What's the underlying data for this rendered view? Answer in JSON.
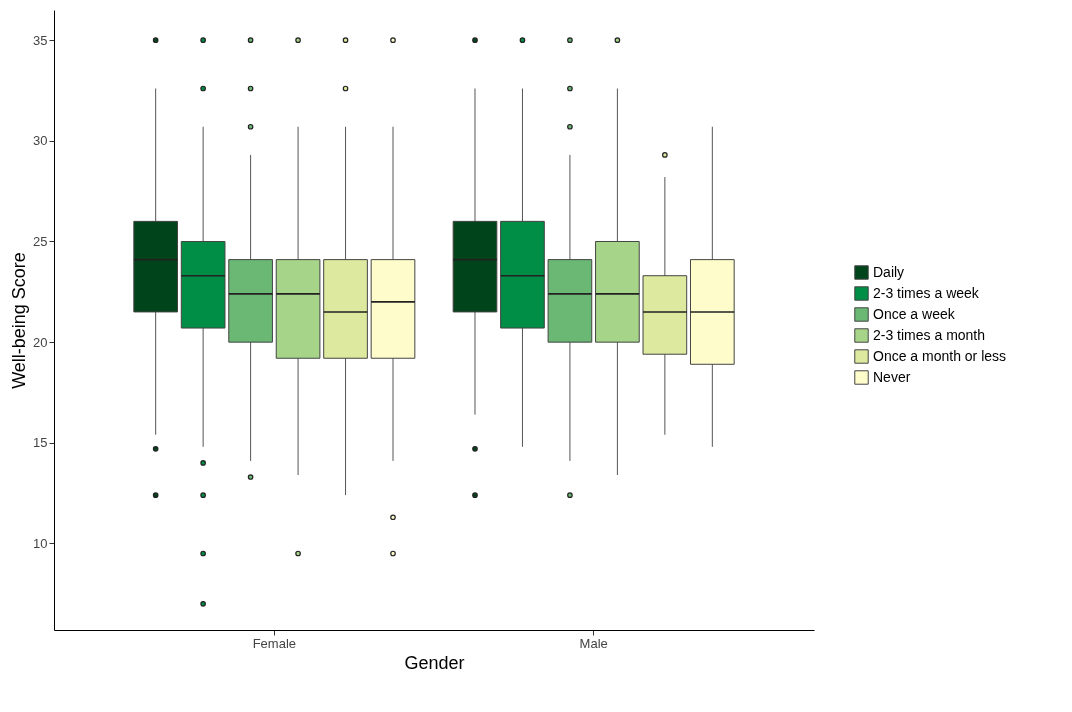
{
  "chart_data": {
    "type": "box",
    "xlabel": "Gender",
    "ylabel": "Well-being Score",
    "categories": [
      "Female",
      "Male"
    ],
    "ylim": [
      5.7,
      36.5
    ],
    "yticks": [
      10,
      15,
      20,
      25,
      30,
      35
    ],
    "legend": "right",
    "series": [
      {
        "name": "Daily",
        "color": "#00441b",
        "boxes": [
          {
            "low": 15.4,
            "q1": 21.5,
            "median": 24.1,
            "q3": 26.0,
            "high": 32.6,
            "outliers": [
              35,
              14.7,
              12.4
            ]
          },
          {
            "low": 16.4,
            "q1": 21.5,
            "median": 24.1,
            "q3": 26.0,
            "high": 32.6,
            "outliers": [
              35,
              14.7,
              12.4
            ]
          }
        ]
      },
      {
        "name": "2-3 times a week",
        "color": "#008d46",
        "boxes": [
          {
            "low": 14.8,
            "q1": 20.7,
            "median": 23.3,
            "q3": 25.0,
            "high": 30.7,
            "outliers": [
              35,
              32.6,
              14.0,
              12.4,
              9.5,
              7.0
            ]
          },
          {
            "low": 14.8,
            "q1": 20.7,
            "median": 23.3,
            "q3": 26.0,
            "high": 32.6,
            "outliers": [
              35
            ]
          }
        ]
      },
      {
        "name": "Once a week",
        "color": "#6bb774",
        "boxes": [
          {
            "low": 14.1,
            "q1": 20.0,
            "median": 22.4,
            "q3": 24.1,
            "high": 29.3,
            "outliers": [
              35,
              32.6,
              30.7,
              13.3
            ]
          },
          {
            "low": 14.1,
            "q1": 20.0,
            "median": 22.4,
            "q3": 24.1,
            "high": 29.3,
            "outliers": [
              35,
              32.6,
              30.7,
              12.4
            ]
          }
        ]
      },
      {
        "name": "2-3 times a month",
        "color": "#a6d58a",
        "boxes": [
          {
            "low": 13.4,
            "q1": 19.2,
            "median": 22.4,
            "q3": 24.1,
            "high": 30.7,
            "outliers": [
              35,
              9.5
            ]
          },
          {
            "low": 13.4,
            "q1": 20.0,
            "median": 22.4,
            "q3": 25.0,
            "high": 32.6,
            "outliers": [
              35
            ]
          }
        ]
      },
      {
        "name": "Once a month or less",
        "color": "#dce99f",
        "boxes": [
          {
            "low": 12.4,
            "q1": 19.2,
            "median": 21.5,
            "q3": 24.1,
            "high": 30.7,
            "outliers": [
              35,
              32.6
            ]
          },
          {
            "low": 15.4,
            "q1": 19.4,
            "median": 21.5,
            "q3": 23.3,
            "high": 28.2,
            "outliers": [
              29.3
            ]
          }
        ]
      },
      {
        "name": "Never",
        "color": "#fffccc",
        "boxes": [
          {
            "low": 14.1,
            "q1": 19.2,
            "median": 22.0,
            "q3": 24.1,
            "high": 30.7,
            "outliers": [
              35,
              11.3,
              9.5
            ]
          },
          {
            "low": 14.8,
            "q1": 18.9,
            "median": 21.5,
            "q3": 24.1,
            "high": 30.7
          }
        ]
      }
    ]
  }
}
